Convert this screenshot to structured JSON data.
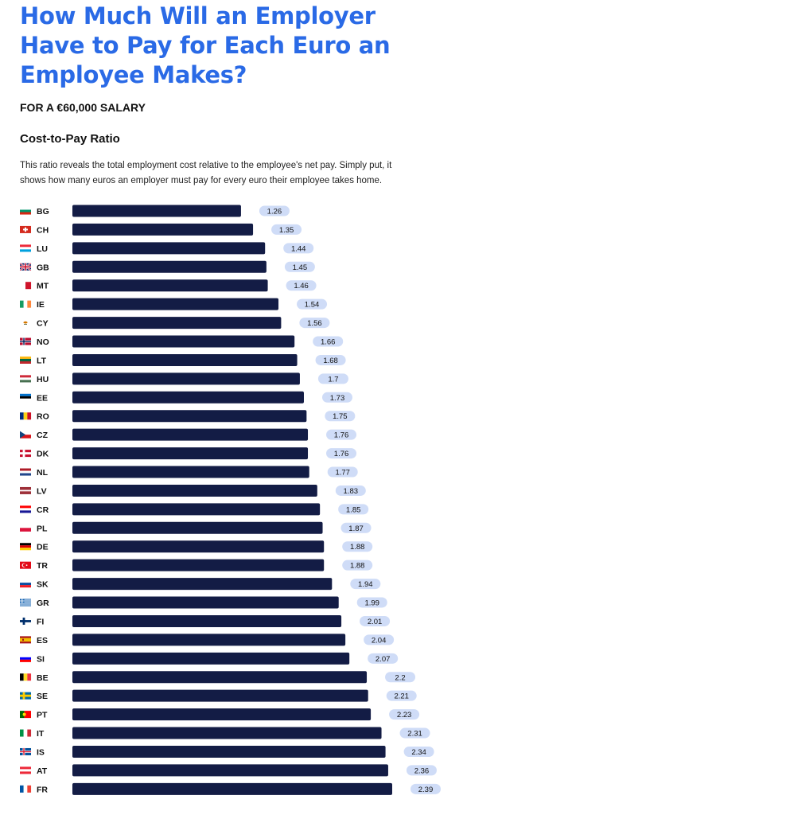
{
  "header": {
    "title": "How Much Will an Employer Have to Pay for Each Euro an Employee Makes?",
    "subtitle": "FOR A €60,000 SALARY",
    "metric_title": "Cost-to-Pay Ratio",
    "description": "This ratio reveals the total employment cost relative to the employee's net pay. Simply put, it shows how many euros an employer must pay for every euro their employee takes home."
  },
  "colors": {
    "title": "#2a6ae6",
    "bar": "#131c45",
    "pill": "#cfdcf7",
    "label_text": "#111111"
  },
  "chart_data": {
    "type": "bar",
    "orientation": "horizontal",
    "title": "Cost-to-Pay Ratio",
    "categories": [
      "BG",
      "CH",
      "LU",
      "GB",
      "MT",
      "IE",
      "CY",
      "NO",
      "LT",
      "HU",
      "EE",
      "RO",
      "CZ",
      "DK",
      "NL",
      "LV",
      "CR",
      "PL",
      "DE",
      "TR",
      "SK",
      "GR",
      "FI",
      "ES",
      "SI",
      "BE",
      "SE",
      "PT",
      "IT",
      "IS",
      "AT",
      "FR"
    ],
    "values": [
      1.26,
      1.35,
      1.44,
      1.45,
      1.46,
      1.54,
      1.56,
      1.66,
      1.68,
      1.7,
      1.73,
      1.75,
      1.76,
      1.76,
      1.77,
      1.83,
      1.85,
      1.87,
      1.88,
      1.88,
      1.94,
      1.99,
      2.01,
      2.04,
      2.07,
      2.2,
      2.21,
      2.23,
      2.31,
      2.34,
      2.36,
      2.39
    ],
    "value_labels": [
      "1.26",
      "1.35",
      "1.44",
      "1.45",
      "1.46",
      "1.54",
      "1.56",
      "1.66",
      "1.68",
      "1.7",
      "1.73",
      "1.75",
      "1.76",
      "1.76",
      "1.77",
      "1.83",
      "1.85",
      "1.87",
      "1.88",
      "1.88",
      "1.94",
      "1.99",
      "2.01",
      "2.04",
      "2.07",
      "2.2",
      "2.21",
      "2.23",
      "2.31",
      "2.34",
      "2.36",
      "2.39"
    ],
    "xlim": [
      0,
      2.39
    ],
    "grid": false,
    "legend": "none"
  }
}
